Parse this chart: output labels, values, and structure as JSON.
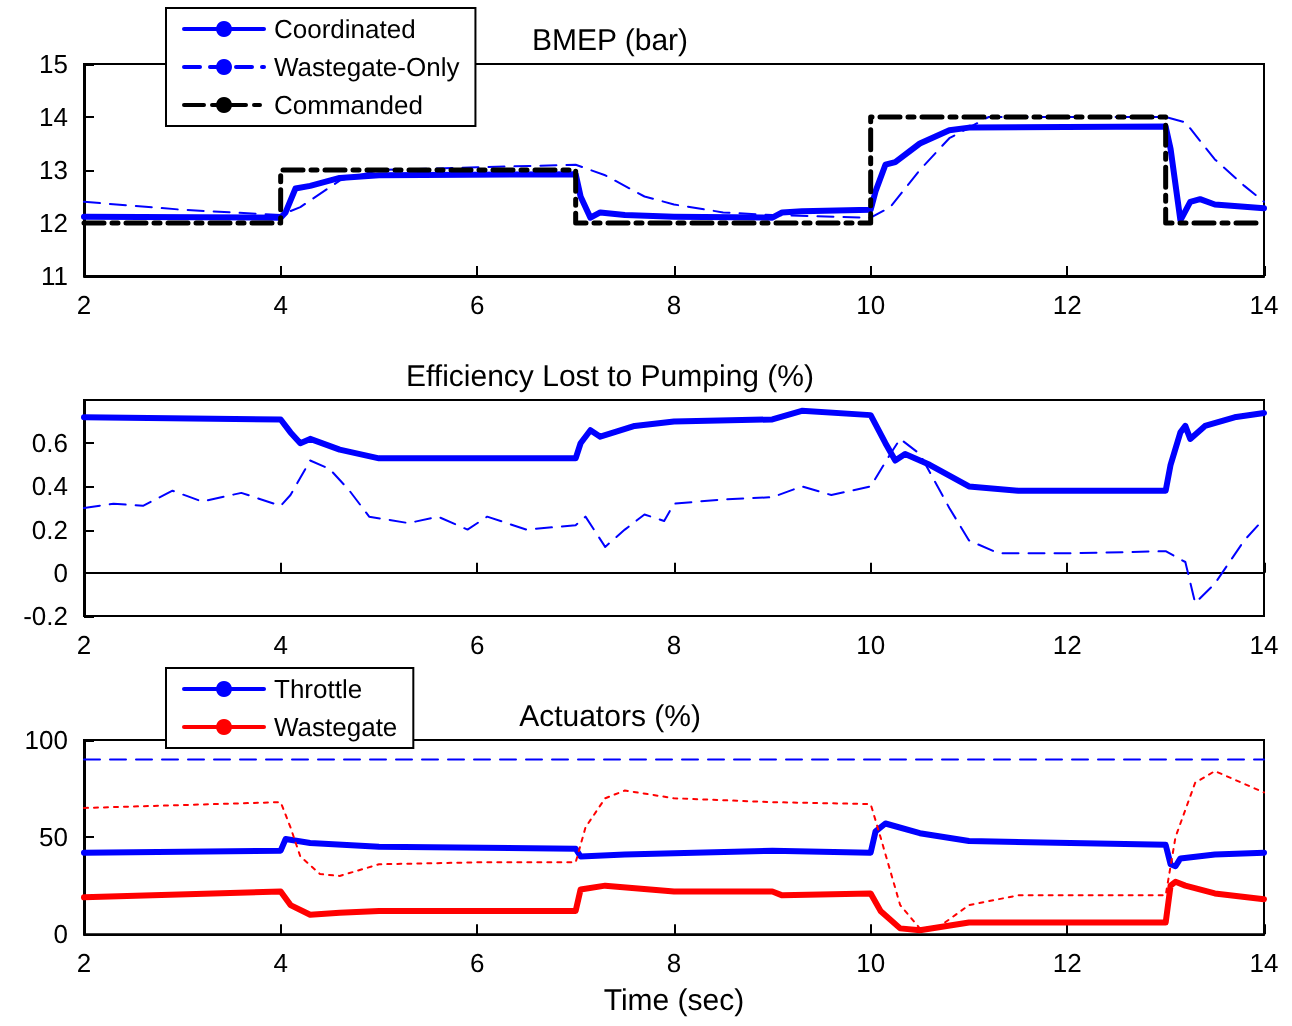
{
  "chart_data": [
    {
      "type": "line",
      "title": "BMEP (bar)",
      "xlim": [
        2,
        14
      ],
      "xticks": [
        2,
        4,
        6,
        8,
        10,
        12,
        14
      ],
      "ylim": [
        11,
        15
      ],
      "yticks": [
        11,
        12,
        13,
        14,
        15
      ],
      "legend": "top left",
      "series": [
        {
          "name": "Coordinated",
          "color": "#0000ff",
          "line_style": "solid",
          "x": [
            2,
            4,
            4.05,
            4.15,
            4.3,
            4.6,
            5,
            7,
            7.05,
            7.15,
            7.25,
            7.5,
            8,
            9,
            9.1,
            9.3,
            10,
            10.05,
            10.15,
            10.25,
            10.5,
            10.8,
            11,
            13,
            13.05,
            13.15,
            13.25,
            13.35,
            13.5,
            14
          ],
          "values": [
            12.12,
            12.1,
            12.2,
            12.65,
            12.7,
            12.85,
            12.9,
            12.92,
            12.5,
            12.1,
            12.2,
            12.15,
            12.12,
            12.1,
            12.2,
            12.22,
            12.25,
            12.6,
            13.1,
            13.15,
            13.5,
            13.75,
            13.8,
            13.82,
            13.4,
            12.05,
            12.4,
            12.45,
            12.35,
            12.28
          ]
        },
        {
          "name": "Wastegate-Only",
          "color": "#0000ff",
          "line_style": "dashed",
          "x": [
            2,
            3,
            4,
            4.2,
            4.6,
            5,
            6,
            7,
            7.3,
            7.7,
            8,
            8.5,
            9,
            10,
            10.2,
            10.5,
            10.8,
            11.2,
            13,
            13.2,
            13.5,
            13.8,
            14
          ],
          "values": [
            12.4,
            12.25,
            12.15,
            12.3,
            12.8,
            13.0,
            13.05,
            13.1,
            12.9,
            12.5,
            12.35,
            12.2,
            12.15,
            12.1,
            12.3,
            13.0,
            13.6,
            14.0,
            14.0,
            13.9,
            13.2,
            12.7,
            12.4
          ]
        },
        {
          "name": "Commanded",
          "color": "#000000",
          "line_style": "dashdot",
          "x": [
            2,
            4,
            4,
            7,
            7,
            10,
            10,
            13,
            13,
            14
          ],
          "values": [
            12,
            12,
            13,
            13,
            12,
            12,
            14,
            14,
            12,
            12
          ]
        }
      ]
    },
    {
      "type": "line",
      "title": "Efficiency Lost to Pumping (%)",
      "xlim": [
        2,
        14
      ],
      "xticks": [
        2,
        4,
        6,
        8,
        10,
        12,
        14
      ],
      "ylim": [
        -0.2,
        0.8
      ],
      "yticks": [
        -0.2,
        0,
        0.2,
        0.4,
        0.6
      ],
      "series": [
        {
          "color": "#0000ff",
          "line_style": "solid",
          "x": [
            2,
            4,
            4.1,
            4.2,
            4.3,
            4.6,
            5,
            7,
            7.05,
            7.15,
            7.25,
            7.6,
            8,
            9,
            9.3,
            10,
            10.15,
            10.25,
            10.35,
            10.6,
            11,
            11.5,
            13,
            13.05,
            13.15,
            13.2,
            13.25,
            13.4,
            13.7,
            14
          ],
          "values": [
            0.72,
            0.71,
            0.65,
            0.6,
            0.62,
            0.57,
            0.53,
            0.53,
            0.6,
            0.66,
            0.63,
            0.68,
            0.7,
            0.71,
            0.75,
            0.73,
            0.6,
            0.52,
            0.55,
            0.5,
            0.4,
            0.38,
            0.38,
            0.5,
            0.65,
            0.68,
            0.62,
            0.68,
            0.72,
            0.74
          ]
        },
        {
          "color": "#0000ff",
          "line_style": "dashed",
          "x": [
            2,
            2.3,
            2.6,
            2.9,
            3.2,
            3.6,
            4,
            4.1,
            4.3,
            4.5,
            4.7,
            4.9,
            5.3,
            5.6,
            5.9,
            6.1,
            6.5,
            7,
            7.1,
            7.3,
            7.5,
            7.7,
            7.9,
            8,
            8.5,
            9,
            9.3,
            9.6,
            10,
            10.2,
            10.3,
            10.5,
            10.8,
            11,
            11.3,
            12,
            13,
            13.2,
            13.3,
            13.5,
            13.8,
            14
          ],
          "values": [
            0.3,
            0.32,
            0.31,
            0.38,
            0.33,
            0.37,
            0.31,
            0.36,
            0.52,
            0.48,
            0.38,
            0.26,
            0.23,
            0.26,
            0.2,
            0.26,
            0.2,
            0.22,
            0.26,
            0.12,
            0.2,
            0.27,
            0.24,
            0.32,
            0.34,
            0.35,
            0.4,
            0.36,
            0.4,
            0.55,
            0.62,
            0.55,
            0.3,
            0.15,
            0.09,
            0.09,
            0.1,
            0.05,
            -0.14,
            -0.05,
            0.15,
            0.25
          ]
        }
      ]
    },
    {
      "type": "line",
      "title": "Actuators (%)",
      "xlabel": "Time (sec)",
      "xlim": [
        2,
        14
      ],
      "xticks": [
        2,
        4,
        6,
        8,
        10,
        12,
        14
      ],
      "ylim": [
        0,
        100
      ],
      "yticks": [
        0,
        50,
        100
      ],
      "legend": "top left",
      "series": [
        {
          "name": "Throttle",
          "color": "#0000ff",
          "line_style": "solid",
          "x": [
            2,
            4,
            4.05,
            4.3,
            5,
            7,
            7.05,
            7.5,
            9,
            10,
            10.05,
            10.15,
            10.5,
            11,
            13,
            13.05,
            13.1,
            13.15,
            13.5,
            14
          ],
          "values": [
            42,
            43,
            49,
            47,
            45,
            44,
            40,
            41,
            43,
            42,
            53,
            57,
            52,
            48,
            46,
            36,
            35,
            39,
            41,
            42
          ]
        },
        {
          "name": "Wastegate",
          "color": "#ff0000",
          "line_style": "solid",
          "x": [
            2,
            4,
            4.1,
            4.3,
            4.6,
            5,
            7,
            7.05,
            7.3,
            8,
            9,
            9.1,
            10,
            10.1,
            10.3,
            10.5,
            11,
            13,
            13.05,
            13.1,
            13.2,
            13.5,
            14
          ],
          "values": [
            19,
            22,
            15,
            10,
            11,
            12,
            12,
            23,
            25,
            22,
            22,
            20,
            21,
            12,
            3,
            2,
            6,
            6,
            25,
            27,
            25,
            21,
            18
          ]
        },
        {
          "color": "#0000ff",
          "line_style": "dashed",
          "x": [
            2,
            14
          ],
          "values": [
            90,
            90
          ]
        },
        {
          "color": "#ff0000",
          "line_style": "dotted",
          "x": [
            2,
            4,
            4.1,
            4.2,
            4.4,
            4.6,
            5,
            6,
            7,
            7.1,
            7.3,
            7.5,
            8,
            9,
            10,
            10.1,
            10.3,
            10.5,
            10.7,
            11,
            11.5,
            13,
            13.1,
            13.3,
            13.5,
            14
          ],
          "values": [
            65,
            68,
            55,
            40,
            31,
            30,
            36,
            37,
            37,
            55,
            70,
            74,
            70,
            68,
            67,
            50,
            15,
            3,
            4,
            15,
            20,
            20,
            50,
            78,
            84,
            73
          ]
        }
      ]
    }
  ]
}
